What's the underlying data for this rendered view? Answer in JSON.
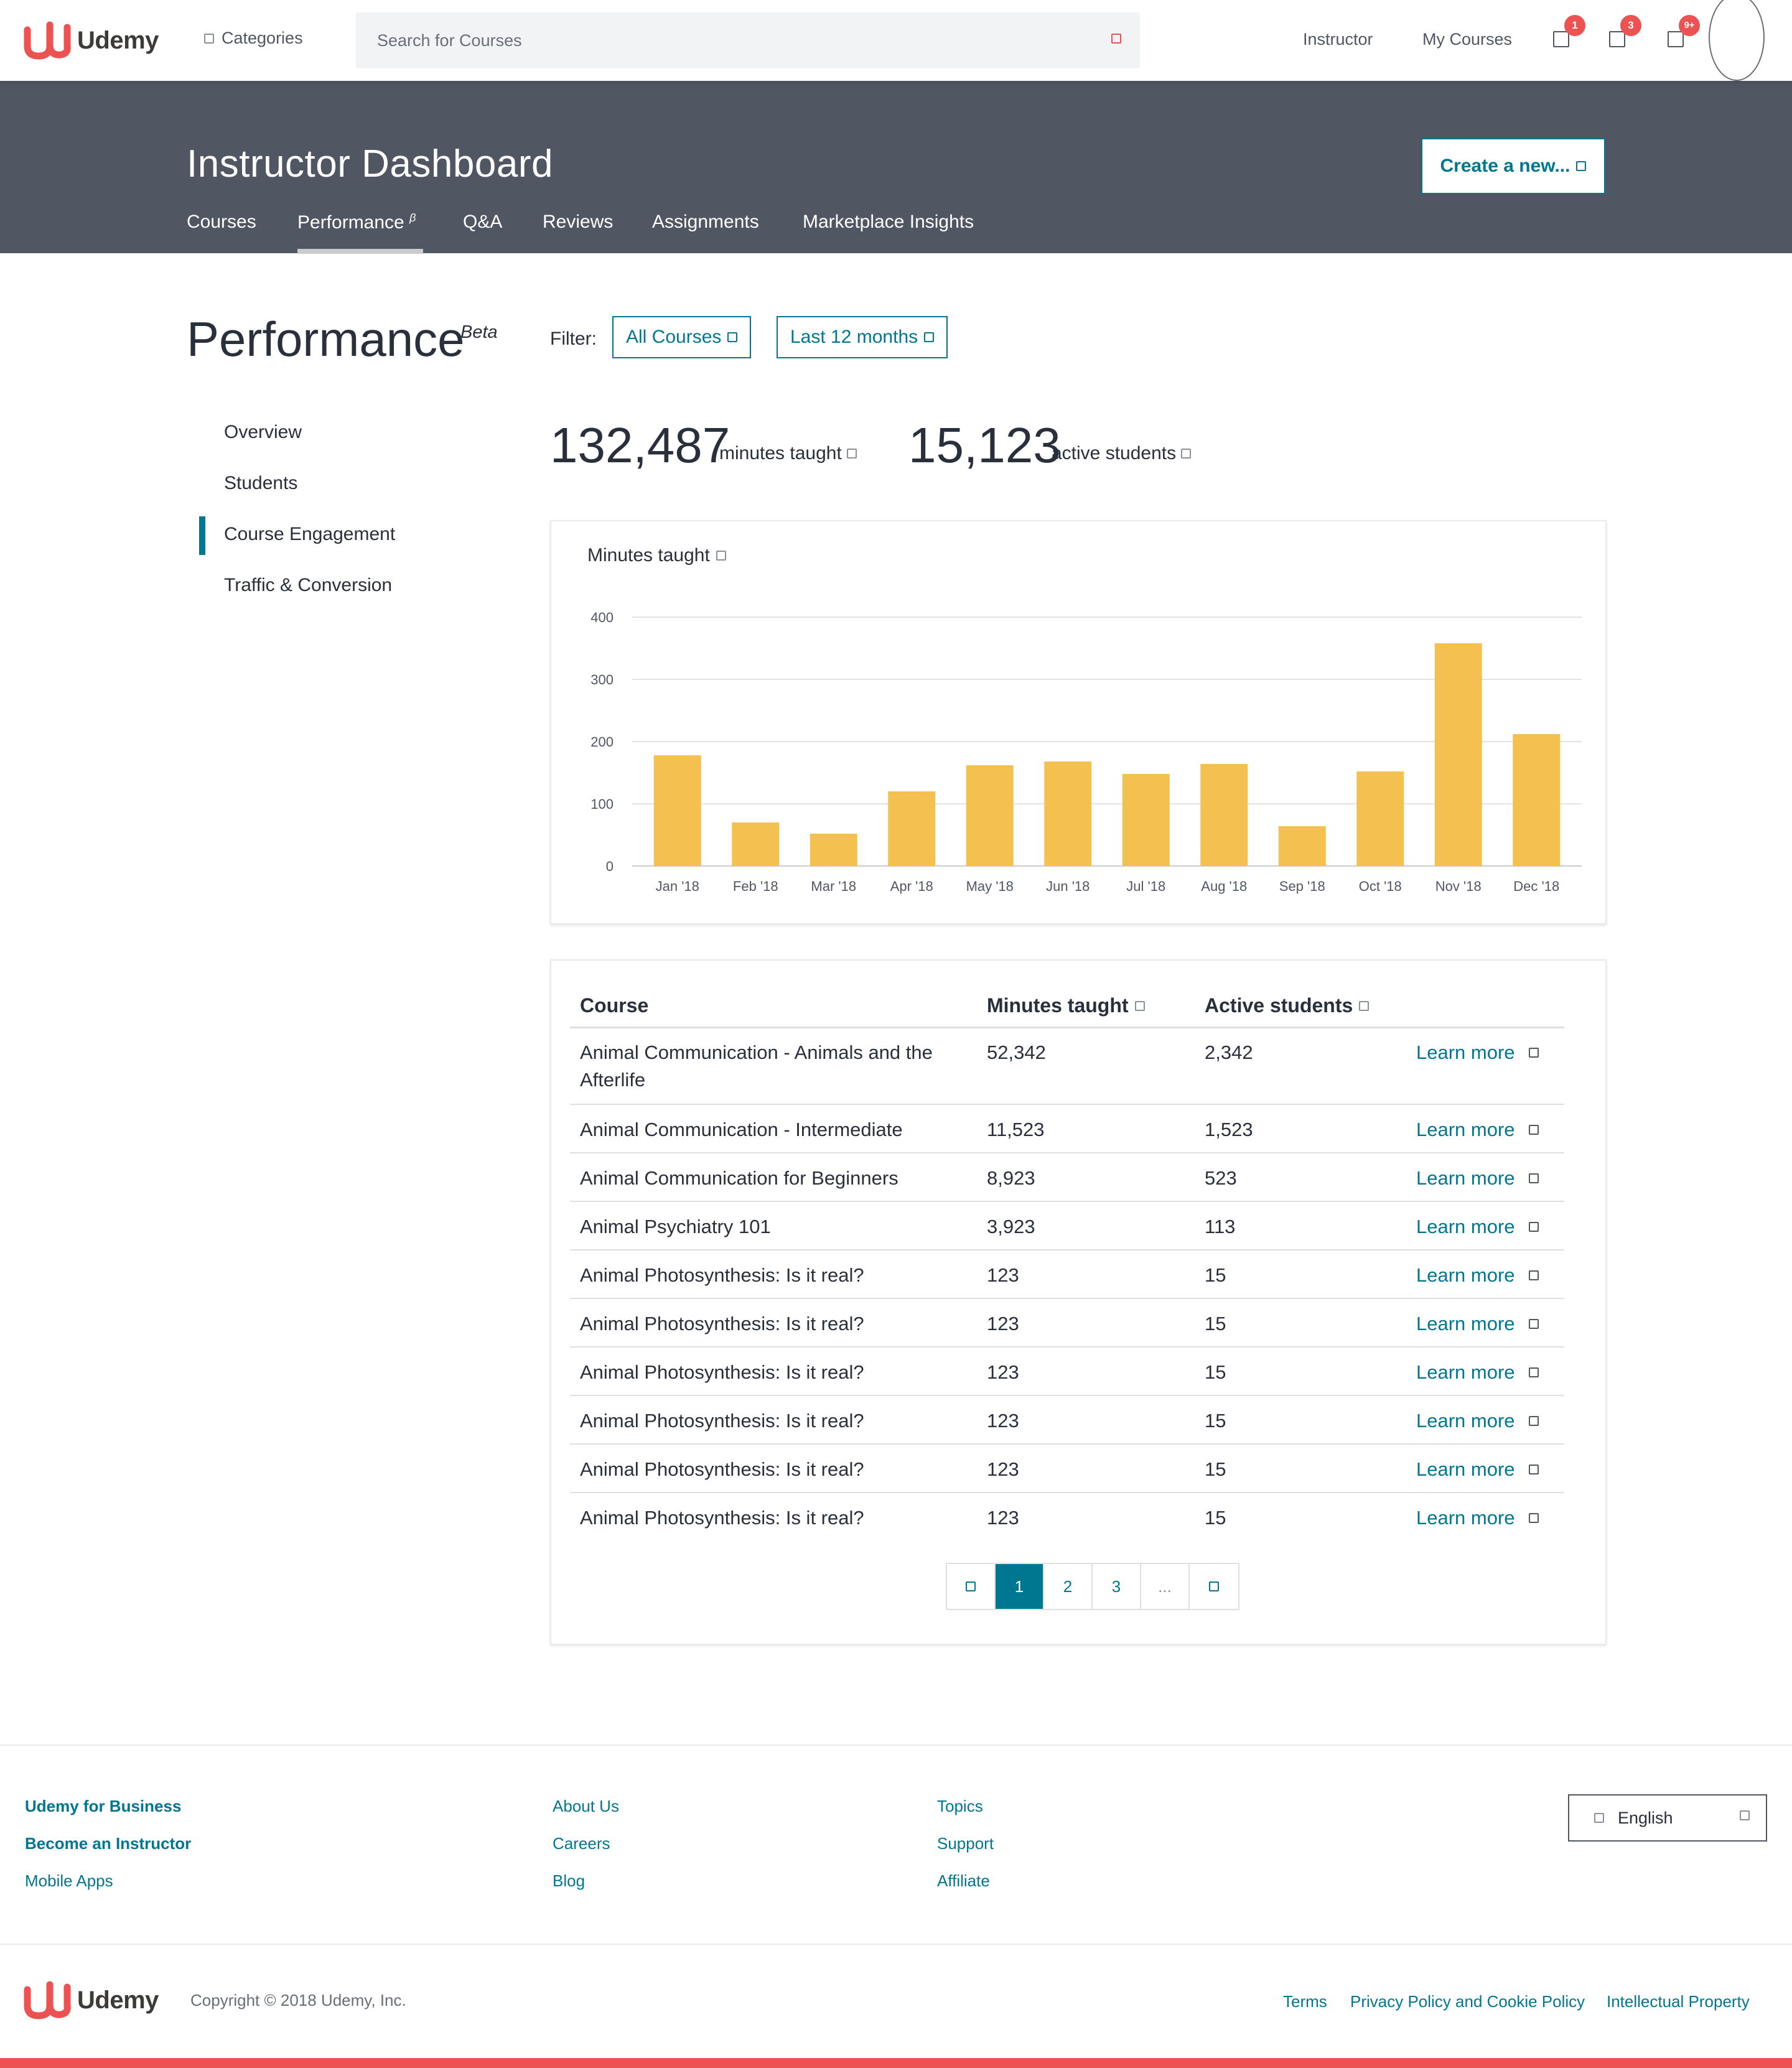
{
  "brand": {
    "name": "Udemy",
    "accent": "#ec5252",
    "teal": "#007791",
    "band_bg": "#505763",
    "bar_color": "#f4c150"
  },
  "header": {
    "categories_label": "Categories",
    "search_placeholder": "Search for Courses",
    "instructor_label": "Instructor",
    "my_courses_label": "My Courses",
    "notifications": [
      {
        "icon": "notification-icon",
        "badge": "1"
      },
      {
        "icon": "message-icon",
        "badge": "3"
      },
      {
        "icon": "bell-icon",
        "badge": "9+"
      }
    ]
  },
  "dashboard": {
    "title": "Instructor Dashboard",
    "create_button": "Create a new...",
    "tabs": [
      {
        "label": "Courses"
      },
      {
        "label": "Performance",
        "sup": "β",
        "active": true
      },
      {
        "label": "Q&A"
      },
      {
        "label": "Reviews"
      },
      {
        "label": "Assignments"
      },
      {
        "label": "Marketplace Insights"
      }
    ]
  },
  "performance": {
    "title": "Performance",
    "beta": "Beta",
    "filter_label": "Filter:",
    "filter_course": "All Courses",
    "filter_period": "Last 12 months"
  },
  "sidebar": {
    "items": [
      {
        "label": "Overview"
      },
      {
        "label": "Students"
      },
      {
        "label": "Course Engagement",
        "active": true
      },
      {
        "label": "Traffic & Conversion"
      }
    ]
  },
  "stats": {
    "minutes_value": "132,487",
    "minutes_label": "minutes taught",
    "students_value": "15,123",
    "students_label": "active students"
  },
  "chart_data": {
    "type": "bar",
    "title": "Minutes taught",
    "categories": [
      "Jan '18",
      "Feb '18",
      "Mar '18",
      "Apr '18",
      "May '18",
      "Jun '18",
      "Jul '18",
      "Aug '18",
      "Sep '18",
      "Oct '18",
      "Nov '18",
      "Dec '18"
    ],
    "values": [
      178,
      70,
      52,
      120,
      162,
      168,
      148,
      164,
      64,
      152,
      358,
      212
    ],
    "ylim": [
      0,
      400
    ],
    "yticks": [
      0,
      100,
      200,
      300,
      400
    ],
    "grid": true,
    "xlabel": "",
    "ylabel": ""
  },
  "table": {
    "headers": {
      "course": "Course",
      "minutes": "Minutes taught",
      "students": "Active students"
    },
    "learn_more_label": "Learn more",
    "rows": [
      {
        "course": "Animal Communication - Animals and the Afterlife",
        "minutes": "52,342",
        "students": "2,342"
      },
      {
        "course": "Animal Communication - Intermediate",
        "minutes": "11,523",
        "students": "1,523"
      },
      {
        "course": "Animal Communication for Beginners",
        "minutes": "8,923",
        "students": "523"
      },
      {
        "course": "Animal Psychiatry 101",
        "minutes": "3,923",
        "students": "113"
      },
      {
        "course": "Animal Photosynthesis: Is it real?",
        "minutes": "123",
        "students": "15"
      },
      {
        "course": "Animal Photosynthesis: Is it real?",
        "minutes": "123",
        "students": "15"
      },
      {
        "course": "Animal Photosynthesis: Is it real?",
        "minutes": "123",
        "students": "15"
      },
      {
        "course": "Animal Photosynthesis: Is it real?",
        "minutes": "123",
        "students": "15"
      },
      {
        "course": "Animal Photosynthesis: Is it real?",
        "minutes": "123",
        "students": "15"
      },
      {
        "course": "Animal Photosynthesis: Is it real?",
        "minutes": "123",
        "students": "15"
      }
    ],
    "pagination": {
      "pages": [
        "1",
        "2",
        "3"
      ],
      "ellipsis": "...",
      "current": "1"
    }
  },
  "footer": {
    "col1": [
      {
        "label": "Udemy for Business",
        "bold": true
      },
      {
        "label": "Become an Instructor",
        "bold": true
      },
      {
        "label": "Mobile Apps"
      }
    ],
    "col2": [
      {
        "label": "About Us"
      },
      {
        "label": "Careers"
      },
      {
        "label": "Blog"
      }
    ],
    "col3": [
      {
        "label": "Topics"
      },
      {
        "label": "Support"
      },
      {
        "label": "Affiliate"
      }
    ],
    "language": "English",
    "copyright": "Copyright © 2018 Udemy, Inc.",
    "legal": [
      {
        "label": "Terms"
      },
      {
        "label": "Privacy Policy and Cookie Policy"
      },
      {
        "label": "Intellectual Property"
      }
    ]
  }
}
